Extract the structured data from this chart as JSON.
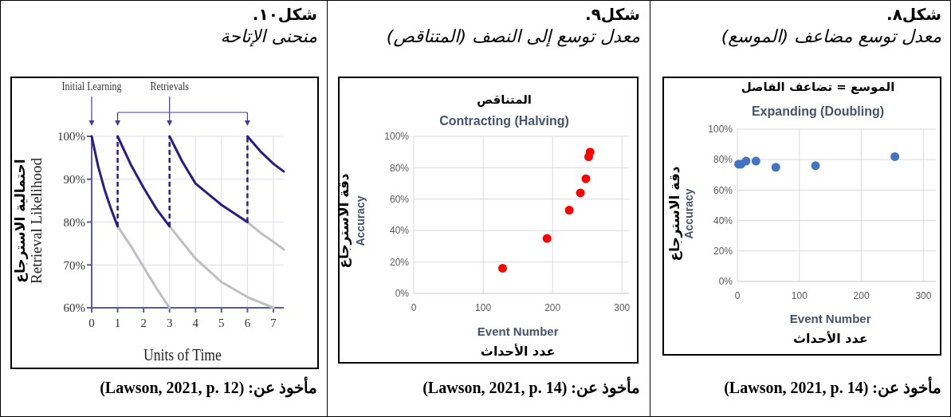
{
  "chart_data": [
    {
      "type": "scatter",
      "title": "الموسع = تضاعف الفاصل",
      "subtitle": "Expanding (Doubling)",
      "xlabel": "Event Number\nعدد الأحداث",
      "ylabel": "دقة الاسترجاع\nAccuracy",
      "annotations": [
        "شكل٨.",
        "معدل توسع مضاعف (الموسع)",
        "مأخوذ عن: (Lawson, 2021, p. 14)"
      ],
      "x": [
        2,
        6,
        14,
        30,
        62,
        126,
        254
      ],
      "series": [
        {
          "color": "#4472c4",
          "values": [
            77,
            77,
            79,
            79,
            75,
            76,
            82
          ]
        }
      ],
      "xlim": [
        0,
        320
      ],
      "ylim": [
        0,
        100
      ],
      "xticks": [
        0,
        100,
        200,
        300
      ],
      "yticks": [
        {
          "value": 0,
          "label": "0%"
        },
        {
          "value": 20,
          "label": "20%"
        },
        {
          "value": 40,
          "label": "40%"
        },
        {
          "value": 60,
          "label": "60%"
        },
        {
          "value": 80,
          "label": "80%"
        },
        {
          "value": 100,
          "label": "100%"
        }
      ],
      "grid": true,
      "marker": "circle"
    },
    {
      "type": "scatter",
      "title": "المتناقص",
      "subtitle": "Contracting (Halving)",
      "xlabel": "Event Number\nعدد الأحداث",
      "ylabel": "دقة الاسترجاع\nAccuracy",
      "annotations": [
        "شكل٩.",
        "معدل توسع إلى النصف (المتناقص)",
        "مأخوذ عن: (Lawson, 2021, p. 14)"
      ],
      "x": [
        128,
        192,
        224,
        240,
        248,
        252,
        254
      ],
      "series": [
        {
          "color": "#ff0000",
          "values": [
            16,
            35,
            53,
            64,
            73,
            87,
            90
          ]
        }
      ],
      "xlim": [
        0,
        310
      ],
      "ylim": [
        0,
        100
      ],
      "xticks": [
        0,
        100,
        200,
        300
      ],
      "yticks": [
        {
          "value": 0,
          "label": "0%"
        },
        {
          "value": 20,
          "label": "20%"
        },
        {
          "value": 40,
          "label": "40%"
        },
        {
          "value": 60,
          "label": "60%"
        },
        {
          "value": 80,
          "label": "80%"
        },
        {
          "value": 100,
          "label": "100%"
        }
      ],
      "grid": true,
      "marker": "circle"
    },
    {
      "type": "line",
      "xlabel": "Units of Time",
      "ylabel": "احتمالية الاسترجاع\nRetrieval Likelihood",
      "annotations": [
        "شكل١٠.",
        "منحنى الإتاحة",
        "مأخوذ عن: (Lawson, 2021, p. 12)",
        "Initial Learning",
        "Retrievals"
      ],
      "series": [
        {
          "color": "#bfbfbf",
          "x": [
            1,
            1.5,
            2,
            2.5,
            3
          ],
          "values": [
            79,
            74.5,
            69.5,
            64.5,
            60
          ]
        },
        {
          "color": "#bfbfbf",
          "x": [
            3,
            4,
            5,
            6,
            7
          ],
          "values": [
            79,
            71.5,
            66,
            62.5,
            60
          ]
        },
        {
          "color": "#bfbfbf",
          "x": [
            6,
            6.5,
            7,
            7.4
          ],
          "values": [
            80,
            77.5,
            75.4,
            73.6
          ]
        },
        {
          "color": "#2e1a87",
          "x": [
            0,
            0.25,
            0.5,
            0.75,
            1
          ],
          "values": [
            100,
            93,
            87.5,
            83,
            79
          ]
        },
        {
          "color": "#2e1a87",
          "x": [
            1,
            1.5,
            2,
            2.5,
            3
          ],
          "values": [
            100,
            93.5,
            88,
            83,
            79
          ]
        },
        {
          "color": "#2e1a87",
          "x": [
            3,
            3.5,
            4,
            5,
            6
          ],
          "values": [
            100,
            94,
            89,
            84,
            80
          ]
        },
        {
          "color": "#2e1a87",
          "x": [
            6,
            6.5,
            7,
            7.4
          ],
          "values": [
            100,
            96.5,
            93.6,
            91.8
          ]
        },
        {
          "color": "#2e1a87",
          "line_style": "dashed",
          "x": [
            1,
            1
          ],
          "values": [
            79,
            100
          ]
        },
        {
          "color": "#2e1a87",
          "line_style": "dashed",
          "x": [
            3,
            3
          ],
          "values": [
            79,
            100
          ]
        },
        {
          "color": "#2e1a87",
          "line_style": "dashed",
          "x": [
            6,
            6
          ],
          "values": [
            80,
            100
          ]
        }
      ],
      "xlim": [
        0,
        7.4
      ],
      "ylim": [
        60,
        100
      ],
      "xticks": [
        0,
        1,
        2,
        3,
        4,
        5,
        6,
        7
      ],
      "yticks": [
        {
          "value": 60,
          "label": "60%"
        },
        {
          "value": 70,
          "label": "70%"
        },
        {
          "value": 80,
          "label": "80%"
        },
        {
          "value": 90,
          "label": "90%"
        },
        {
          "value": 100,
          "label": "100%"
        }
      ],
      "grid": true
    }
  ]
}
